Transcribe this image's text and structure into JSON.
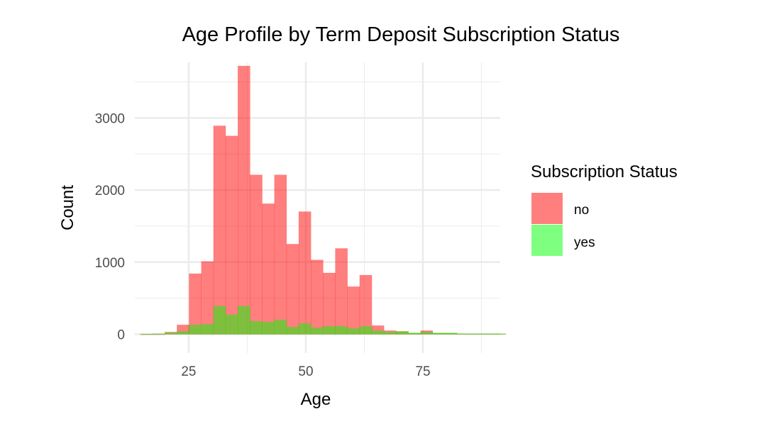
{
  "chart_data": {
    "type": "bar",
    "title": "Age Profile by Term Deposit Subscription Status",
    "xlabel": "Age",
    "ylabel": "Count",
    "xlim": [
      13.5,
      91.5
    ],
    "ylim": [
      -260,
      3770
    ],
    "xticks": [
      25,
      50,
      75
    ],
    "yticks": [
      0,
      1000,
      2000,
      3000
    ],
    "grid": true,
    "legend_title": "Subscription Status",
    "legend_position": "right",
    "bin_width": 2.6,
    "bins_start": 14.7,
    "series": [
      {
        "name": "no",
        "color": "#FF0000",
        "values": [
          0,
          0,
          30,
          130,
          840,
          1010,
          2890,
          2750,
          3720,
          2210,
          1810,
          2210,
          1250,
          1700,
          1030,
          850,
          1190,
          660,
          820,
          120,
          50,
          40,
          15,
          50,
          15,
          15,
          5,
          5,
          5,
          5
        ]
      },
      {
        "name": "yes",
        "color": "#00FF00",
        "values": [
          5,
          10,
          20,
          40,
          130,
          140,
          390,
          270,
          390,
          180,
          170,
          200,
          100,
          150,
          90,
          110,
          110,
          80,
          110,
          50,
          30,
          40,
          20,
          30,
          20,
          20,
          10,
          10,
          10,
          10
        ]
      }
    ]
  }
}
